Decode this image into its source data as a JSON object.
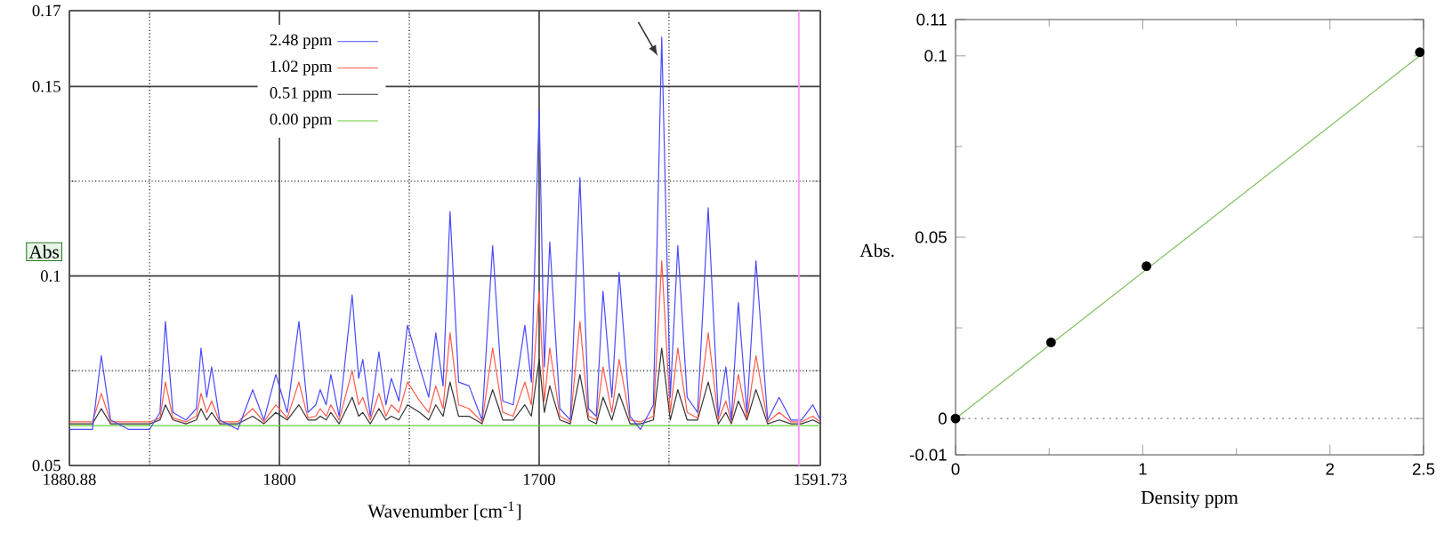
{
  "chart_data": [
    {
      "type": "line",
      "xlabel": "Wavenumber [cm$^{-1}$]",
      "ylabel": "Abs",
      "xlim": [
        1880.88,
        1591.73
      ],
      "ylim": [
        0.05,
        0.17
      ],
      "xticks": [
        1880.88,
        {
          "value": 1850,
          "label": null
        },
        1800,
        {
          "value": 1750,
          "label": null
        },
        1700,
        {
          "value": 1650,
          "label": null
        },
        1591.73
      ],
      "yticks": [
        0.05,
        {
          "value": 0.075,
          "label": null
        },
        0.1,
        {
          "value": 0.125,
          "label": null
        },
        0.15,
        0.17
      ],
      "grid": true,
      "legend": "top left",
      "ref_lines": [
        {
          "axis": "x",
          "value": 1600,
          "color": "#ff99ff"
        }
      ],
      "x": [
        1880.88,
        1872,
        1868.6,
        1865,
        1858,
        1850,
        1846,
        1843.9,
        1841,
        1836,
        1832,
        1830.2,
        1828,
        1826.1,
        1823,
        1816,
        1810.3,
        1806,
        1801.4,
        1797,
        1792.5,
        1789,
        1786,
        1784.3,
        1782,
        1780.2,
        1777,
        1772,
        1769.5,
        1767.9,
        1765,
        1761.7,
        1759,
        1756.9,
        1754,
        1750.7,
        1746,
        1742.5,
        1739.8,
        1737,
        1734.3,
        1731,
        1727,
        1722,
        1717.9,
        1714,
        1710,
        1705.5,
        1703,
        1700,
        1698,
        1695.9,
        1692,
        1688,
        1684.3,
        1681,
        1678,
        1675.4,
        1672,
        1669.2,
        1665,
        1661,
        1656,
        1652.8,
        1649.5,
        1646.6,
        1643,
        1639,
        1634.9,
        1631,
        1628.1,
        1626,
        1623.3,
        1620,
        1616.5,
        1612,
        1607.6,
        1603,
        1599,
        1594.6,
        1591.73
      ],
      "series": [
        {
          "name": "2.48 ppm",
          "color": "#4a4aff",
          "values": [
            0.0595,
            0.0595,
            0.079,
            0.062,
            0.0595,
            0.0595,
            0.064,
            0.088,
            0.064,
            0.062,
            0.065,
            0.081,
            0.068,
            0.076,
            0.062,
            0.0595,
            0.07,
            0.062,
            0.074,
            0.064,
            0.088,
            0.064,
            0.066,
            0.07,
            0.066,
            0.074,
            0.063,
            0.095,
            0.073,
            0.078,
            0.063,
            0.08,
            0.066,
            0.073,
            0.067,
            0.087,
            0.076,
            0.068,
            0.085,
            0.071,
            0.117,
            0.072,
            0.071,
            0.062,
            0.108,
            0.067,
            0.066,
            0.087,
            0.072,
            0.144,
            0.076,
            0.109,
            0.065,
            0.062,
            0.126,
            0.065,
            0.063,
            0.096,
            0.068,
            0.101,
            0.063,
            0.0595,
            0.066,
            0.163,
            0.068,
            0.108,
            0.068,
            0.064,
            0.118,
            0.063,
            0.076,
            0.062,
            0.093,
            0.064,
            0.104,
            0.062,
            0.068,
            0.062,
            0.062,
            0.066,
            0.062
          ]
        },
        {
          "name": "1.02 ppm",
          "color": "#ff5a4a",
          "values": [
            0.0615,
            0.0615,
            0.069,
            0.0615,
            0.0615,
            0.0615,
            0.0625,
            0.072,
            0.0625,
            0.0615,
            0.063,
            0.069,
            0.064,
            0.067,
            0.0615,
            0.0615,
            0.065,
            0.0615,
            0.066,
            0.0625,
            0.072,
            0.0625,
            0.063,
            0.065,
            0.063,
            0.066,
            0.062,
            0.075,
            0.066,
            0.068,
            0.062,
            0.069,
            0.063,
            0.066,
            0.064,
            0.072,
            0.067,
            0.064,
            0.071,
            0.065,
            0.085,
            0.066,
            0.065,
            0.0615,
            0.081,
            0.064,
            0.063,
            0.072,
            0.066,
            0.096,
            0.067,
            0.081,
            0.063,
            0.0615,
            0.088,
            0.063,
            0.062,
            0.076,
            0.064,
            0.078,
            0.062,
            0.0615,
            0.063,
            0.104,
            0.064,
            0.081,
            0.064,
            0.0625,
            0.085,
            0.062,
            0.067,
            0.0615,
            0.074,
            0.0625,
            0.079,
            0.0615,
            0.064,
            0.0615,
            0.0615,
            0.063,
            0.0615
          ]
        },
        {
          "name": "0.51 ppm",
          "color": "#333333",
          "values": [
            0.061,
            0.061,
            0.065,
            0.061,
            0.061,
            0.061,
            0.062,
            0.066,
            0.062,
            0.061,
            0.062,
            0.065,
            0.062,
            0.064,
            0.061,
            0.061,
            0.063,
            0.061,
            0.064,
            0.062,
            0.066,
            0.062,
            0.062,
            0.063,
            0.062,
            0.064,
            0.061,
            0.068,
            0.063,
            0.064,
            0.061,
            0.065,
            0.062,
            0.063,
            0.062,
            0.066,
            0.064,
            0.062,
            0.066,
            0.063,
            0.072,
            0.063,
            0.063,
            0.061,
            0.07,
            0.062,
            0.062,
            0.066,
            0.063,
            0.078,
            0.064,
            0.071,
            0.062,
            0.061,
            0.074,
            0.062,
            0.061,
            0.068,
            0.062,
            0.069,
            0.061,
            0.061,
            0.062,
            0.081,
            0.062,
            0.07,
            0.062,
            0.062,
            0.072,
            0.061,
            0.064,
            0.061,
            0.067,
            0.062,
            0.07,
            0.061,
            0.062,
            0.061,
            0.061,
            0.062,
            0.061
          ]
        },
        {
          "name": "0.00 ppm",
          "color": "#66cc33",
          "values": [
            0.0605,
            0.0605,
            0.0605,
            0.0605,
            0.0605,
            0.0605,
            0.0605,
            0.0605,
            0.0605,
            0.0605,
            0.0605,
            0.0605,
            0.0605,
            0.0605,
            0.0605,
            0.0605,
            0.0605,
            0.0605,
            0.0605,
            0.0605,
            0.0605,
            0.0605,
            0.0605,
            0.0605,
            0.0605,
            0.0605,
            0.0605,
            0.0605,
            0.0605,
            0.0605,
            0.0605,
            0.0605,
            0.0605,
            0.0605,
            0.0605,
            0.0605,
            0.0605,
            0.0605,
            0.0605,
            0.0605,
            0.0605,
            0.0605,
            0.0605,
            0.0605,
            0.0605,
            0.0605,
            0.0605,
            0.0605,
            0.0605,
            0.0605,
            0.0605,
            0.0605,
            0.0605,
            0.0605,
            0.0605,
            0.0605,
            0.0605,
            0.0605,
            0.0605,
            0.0605,
            0.0605,
            0.0605,
            0.0605,
            0.0605,
            0.0605,
            0.0605,
            0.0605,
            0.0605,
            0.0605,
            0.0605,
            0.0605,
            0.0605,
            0.0605,
            0.0605,
            0.0605,
            0.0605,
            0.0605,
            0.0605,
            0.0605,
            0.0605,
            0.0605
          ]
        }
      ]
    },
    {
      "type": "scatter",
      "xlabel": "Density ppm",
      "ylabel": "Abs.",
      "xlim": [
        0,
        2.5
      ],
      "ylim": [
        -0.01,
        0.11
      ],
      "xticks": [
        0,
        {
          "value": 0.5,
          "label": null
        },
        1,
        {
          "value": 1.5,
          "label": null
        },
        2,
        2.5
      ],
      "yticks": [
        -0.01,
        0,
        {
          "value": 0.025,
          "label": null
        },
        0.05,
        {
          "value": 0.075,
          "label": null
        },
        0.1,
        0.11
      ],
      "ref_lines": [
        {
          "axis": "y",
          "value": 0,
          "color": "#999999",
          "line_style": "dotted"
        }
      ],
      "series": [
        {
          "type": "line",
          "color": "#7fbf5f",
          "x": [
            0,
            2.48
          ],
          "values": [
            0,
            0.1
          ]
        },
        {
          "type": "scatter",
          "color": "#000000",
          "marker": "circle",
          "x": [
            0,
            0.51,
            1.02,
            2.48
          ],
          "values": [
            0,
            0.021,
            0.042,
            0.101
          ]
        }
      ]
    }
  ]
}
